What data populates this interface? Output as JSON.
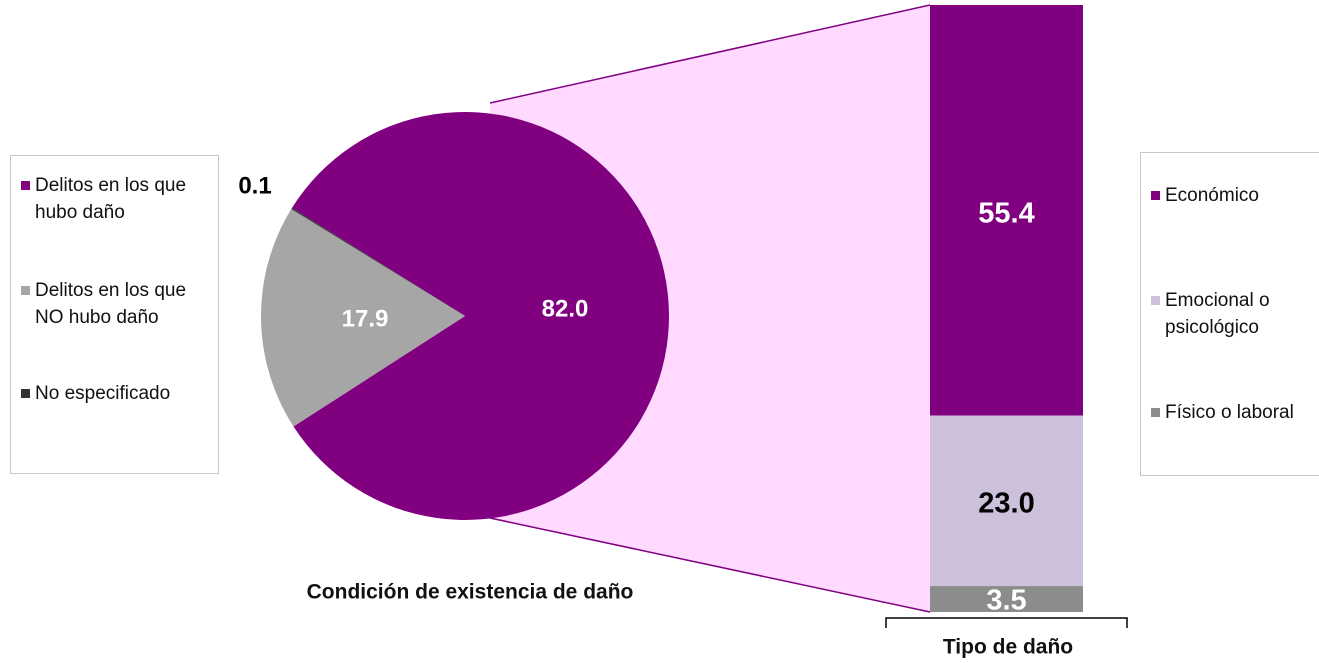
{
  "chart_data": [
    {
      "type": "pie",
      "title": "Condición de existencia de daño",
      "categories": [
        "Delitos en los que hubo daño",
        "Delitos en los que NO hubo daño",
        "No especificado"
      ],
      "values": [
        82.0,
        17.9,
        0.1
      ],
      "value_labels": [
        "82.0",
        "17.9",
        "0.1"
      ],
      "colors": [
        "#800080",
        "#a6a6a6",
        "#333333"
      ]
    },
    {
      "type": "bar",
      "title": "Tipo de daño",
      "categories": [
        "Económico",
        "Emocional o psicológico",
        "Físico o laboral"
      ],
      "values": [
        55.4,
        23.0,
        3.5
      ],
      "value_labels": [
        "55.4",
        "23.0",
        "3.5"
      ],
      "colors": [
        "#800080",
        "#ccc0da",
        "#8c8c8c"
      ]
    }
  ]
}
